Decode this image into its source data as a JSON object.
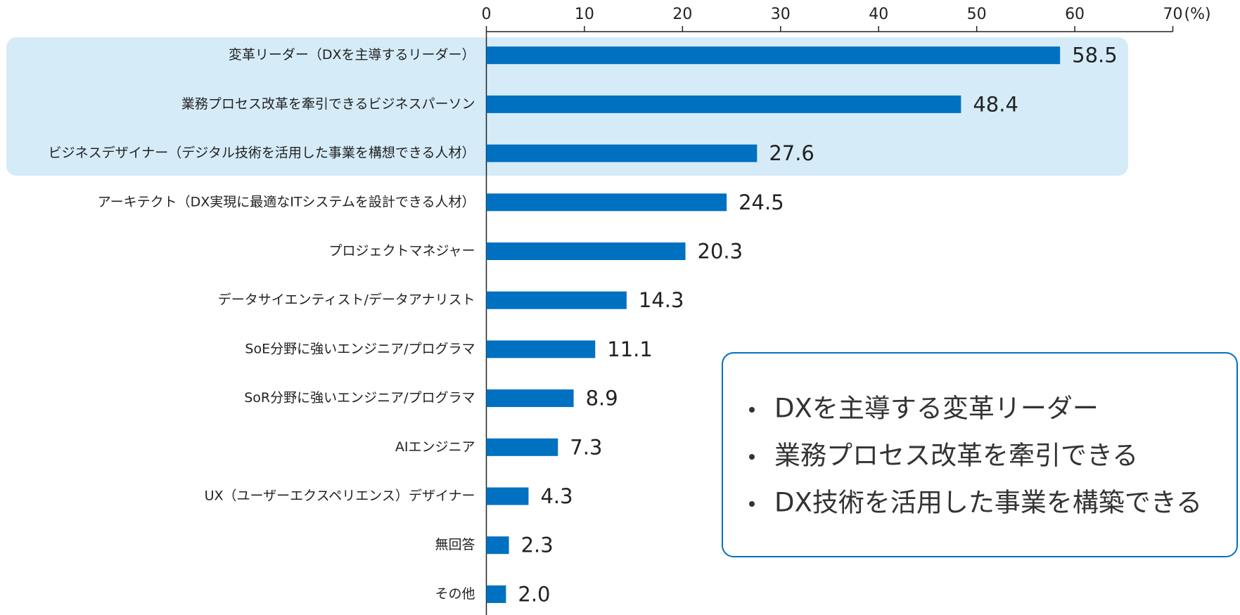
{
  "chart_data": {
    "type": "bar",
    "orientation": "horizontal",
    "categories": [
      "変革リーダー（DXを主導するリーダー）",
      "業務プロセス改革を牽引できるビジネスパーソン",
      "ビジネスデザイナー（デジタル技術を活用した事業を構想できる人材）",
      "アーキテクト（DX実現に最適なITシステムを設計できる人材）",
      "プロジェクトマネジャー",
      "データサイエンティスト/データアナリスト",
      "SoE分野に強いエンジニア/プログラマ",
      "SoR分野に強いエンジニア/プログラマ",
      "AIエンジニア",
      "UX（ユーザーエクスペリエンス）デザイナー",
      "無回答",
      "その他"
    ],
    "values": [
      58.5,
      48.4,
      27.6,
      24.5,
      20.3,
      14.3,
      11.1,
      8.9,
      7.3,
      4.3,
      2.3,
      2.0
    ],
    "value_labels": [
      "58.5",
      "48.4",
      "27.6",
      "24.5",
      "20.3",
      "14.3",
      "11.1",
      "8.9",
      "7.3",
      "4.3",
      "2.3",
      "2.0"
    ],
    "color": "#0070c0",
    "xlim": [
      0,
      70
    ],
    "xticks": [
      0,
      10,
      20,
      30,
      40,
      50,
      60,
      70
    ],
    "x_unit": "(%)",
    "annotation": [
      "DXを主導する変革リーダー",
      "業務プロセス改革を牽引できる",
      "DX技術を活用した事業を構築できる"
    ]
  }
}
